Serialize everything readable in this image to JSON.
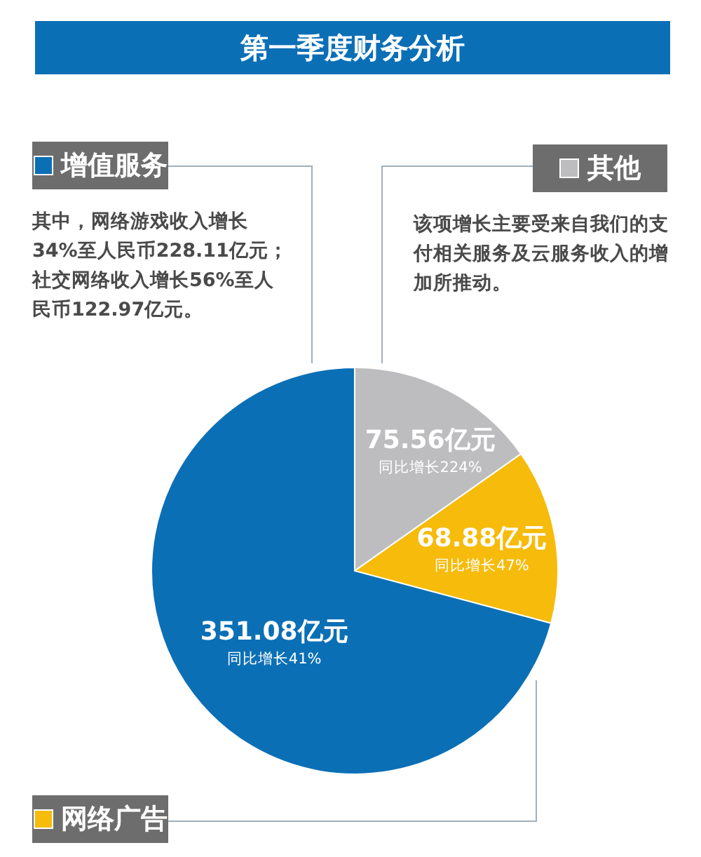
{
  "chart_data": {
    "type": "pie",
    "title": "第一季度财务分析",
    "categories": [
      "其他",
      "网络广告",
      "增值服务"
    ],
    "values": [
      75.56,
      68.88,
      351.08
    ],
    "colors": [
      "#bdbdbf",
      "#f6bb0b",
      "#0b6fb6"
    ],
    "legend": "left",
    "value_labels": [
      "75.56亿元",
      "68.88亿元",
      "351.08亿元"
    ],
    "annotations": [
      "同比增长224%",
      "同比增长47%",
      "同比增长41%",
      "该项增长主要受来自我们的支付相关服务及云服务收入的增加所推动。",
      "其中，网络游戏收入增长34%至人民币228.11亿元；社交网络收入增长56%至人民币122.97亿元。"
    ]
  }
}
